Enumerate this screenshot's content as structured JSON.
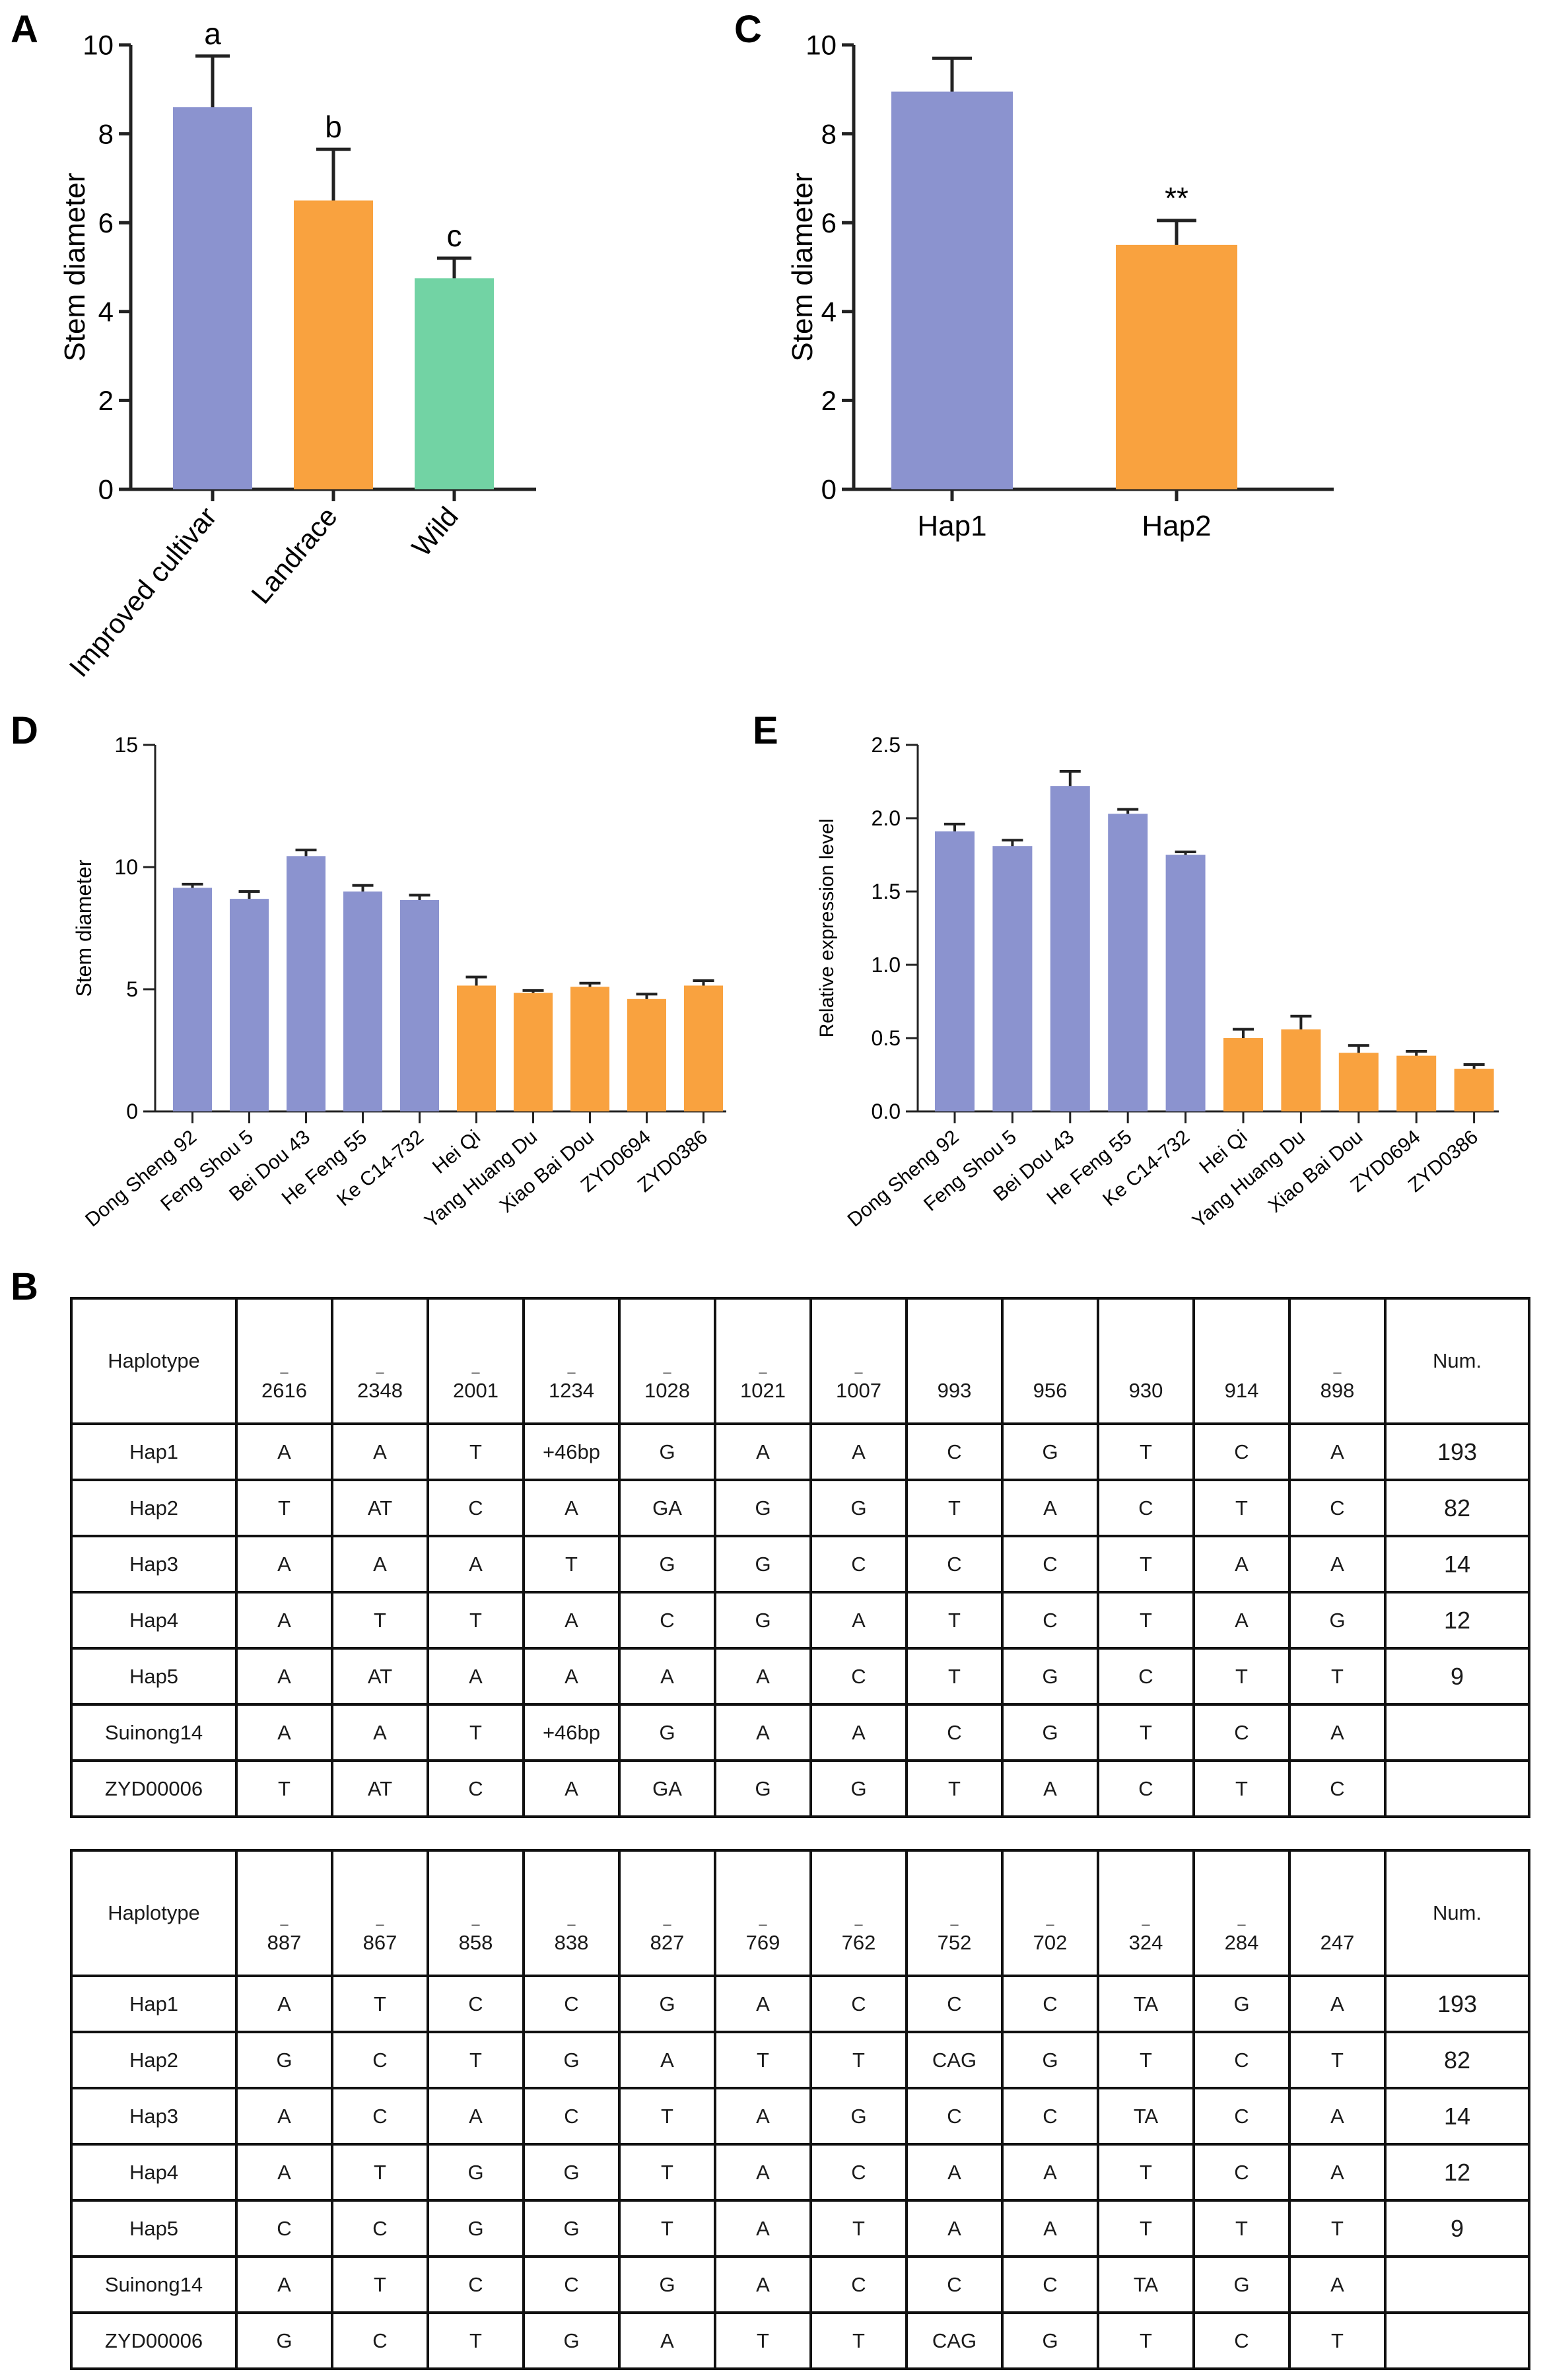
{
  "panel_labels": {
    "A": "A",
    "B": "B",
    "C": "C",
    "D": "D",
    "E": "E"
  },
  "colors": {
    "purple": "#8b93cf",
    "orange": "#f9a23f",
    "green": "#72d3a4"
  },
  "chart_data": [
    {
      "id": "A",
      "type": "bar",
      "title": "",
      "xlabel": "",
      "ylabel": "Stem diameter",
      "ylim": [
        0,
        10
      ],
      "yticks": [
        "0",
        "2",
        "4",
        "6",
        "8",
        "10"
      ],
      "categories": [
        "Improved cultivar",
        "Landrace",
        "Wild"
      ],
      "values": [
        8.6,
        6.5,
        4.75
      ],
      "errors": [
        1.15,
        1.15,
        0.45
      ],
      "colors": [
        "#8b93cf",
        "#f9a23f",
        "#72d3a4"
      ],
      "annotations": [
        "a",
        "b",
        "c"
      ]
    },
    {
      "id": "C",
      "type": "bar",
      "title": "",
      "xlabel": "",
      "ylabel": "Stem diameter",
      "ylim": [
        0,
        10
      ],
      "yticks": [
        "0",
        "2",
        "4",
        "6",
        "8",
        "10"
      ],
      "categories": [
        "Hap1",
        "Hap2"
      ],
      "values": [
        8.95,
        5.5
      ],
      "errors": [
        0.75,
        0.55
      ],
      "colors": [
        "#8b93cf",
        "#f9a23f"
      ],
      "annotations": [
        "",
        "**"
      ]
    },
    {
      "id": "D",
      "type": "bar",
      "title": "",
      "xlabel": "",
      "ylabel": "Stem diameter",
      "ylim": [
        0,
        15
      ],
      "yticks": [
        "0",
        "5",
        "10",
        "15"
      ],
      "categories": [
        "Dong Sheng 92",
        "Feng Shou 5",
        "Bei Dou 43",
        "He Feng 55",
        "Ke C14-732",
        "Hei Qi",
        "Yang Huang Du",
        "Xiao Bai Dou",
        "ZYD0694",
        "ZYD0386"
      ],
      "values": [
        9.15,
        8.7,
        10.45,
        9.0,
        8.65,
        5.15,
        4.85,
        5.1,
        4.6,
        5.15
      ],
      "errors": [
        0.15,
        0.3,
        0.25,
        0.25,
        0.2,
        0.35,
        0.1,
        0.15,
        0.2,
        0.2
      ],
      "colors": [
        "#8b93cf",
        "#8b93cf",
        "#8b93cf",
        "#8b93cf",
        "#8b93cf",
        "#f9a23f",
        "#f9a23f",
        "#f9a23f",
        "#f9a23f",
        "#f9a23f"
      ]
    },
    {
      "id": "E",
      "type": "bar",
      "title": "",
      "xlabel": "",
      "ylabel": "Relative expression level",
      "ylim": [
        0,
        2.5
      ],
      "yticks": [
        "0.0",
        "0.5",
        "1.0",
        "1.5",
        "2.0",
        "2.5"
      ],
      "categories": [
        "Dong Sheng 92",
        "Feng Shou 5",
        "Bei Dou 43",
        "He Feng 55",
        "Ke C14-732",
        "Hei Qi",
        "Yang Huang Du",
        "Xiao Bai Dou",
        "ZYD0694",
        "ZYD0386"
      ],
      "values": [
        1.91,
        1.81,
        2.22,
        2.03,
        1.75,
        0.5,
        0.56,
        0.4,
        0.38,
        0.29
      ],
      "errors": [
        0.05,
        0.04,
        0.1,
        0.03,
        0.02,
        0.06,
        0.09,
        0.05,
        0.03,
        0.03
      ],
      "colors": [
        "#8b93cf",
        "#8b93cf",
        "#8b93cf",
        "#8b93cf",
        "#8b93cf",
        "#f9a23f",
        "#f9a23f",
        "#f9a23f",
        "#f9a23f",
        "#f9a23f"
      ]
    }
  ],
  "tables": [
    {
      "header_label": "Haplotype",
      "count_label": "Num.",
      "positions": [
        {
          "dash": "–",
          "num": "2616"
        },
        {
          "dash": "–",
          "num": "2348"
        },
        {
          "dash": "–",
          "num": "2001"
        },
        {
          "dash": "–",
          "num": "1234"
        },
        {
          "dash": "–",
          "num": "1028"
        },
        {
          "dash": "–",
          "num": "1021"
        },
        {
          "dash": "–",
          "num": "1007"
        },
        {
          "dash": "",
          "num": "993"
        },
        {
          "dash": "",
          "num": "956"
        },
        {
          "dash": "",
          "num": "930"
        },
        {
          "dash": "",
          "num": "914"
        },
        {
          "dash": "–",
          "num": "898"
        }
      ],
      "rows": [
        {
          "name": "Hap1",
          "cells": [
            "A",
            "A",
            "T",
            "+46bp",
            "G",
            "A",
            "A",
            "C",
            "G",
            "T",
            "C",
            "A"
          ],
          "num": "193"
        },
        {
          "name": "Hap2",
          "cells": [
            "T",
            "AT",
            "C",
            "A",
            "GA",
            "G",
            "G",
            "T",
            "A",
            "C",
            "T",
            "C"
          ],
          "num": "82"
        },
        {
          "name": "Hap3",
          "cells": [
            "A",
            "A",
            "A",
            "T",
            "G",
            "G",
            "C",
            "C",
            "C",
            "T",
            "A",
            "A"
          ],
          "num": "14"
        },
        {
          "name": "Hap4",
          "cells": [
            "A",
            "T",
            "T",
            "A",
            "C",
            "G",
            "A",
            "T",
            "C",
            "T",
            "A",
            "G"
          ],
          "num": "12"
        },
        {
          "name": "Hap5",
          "cells": [
            "A",
            "AT",
            "A",
            "A",
            "A",
            "A",
            "C",
            "T",
            "G",
            "C",
            "T",
            "T"
          ],
          "num": "9"
        },
        {
          "name": "Suinong14",
          "cells": [
            "A",
            "A",
            "T",
            "+46bp",
            "G",
            "A",
            "A",
            "C",
            "G",
            "T",
            "C",
            "A"
          ],
          "num": ""
        },
        {
          "name": "ZYD00006",
          "cells": [
            "T",
            "AT",
            "C",
            "A",
            "GA",
            "G",
            "G",
            "T",
            "A",
            "C",
            "T",
            "C"
          ],
          "num": ""
        }
      ]
    },
    {
      "header_label": "Haplotype",
      "count_label": "Num.",
      "positions": [
        {
          "dash": "–",
          "num": "887"
        },
        {
          "dash": "–",
          "num": "867"
        },
        {
          "dash": "–",
          "num": "858"
        },
        {
          "dash": "–",
          "num": "838"
        },
        {
          "dash": "–",
          "num": "827"
        },
        {
          "dash": "–",
          "num": "769"
        },
        {
          "dash": "–",
          "num": "762"
        },
        {
          "dash": "–",
          "num": "752"
        },
        {
          "dash": "–",
          "num": "702"
        },
        {
          "dash": "–",
          "num": "324"
        },
        {
          "dash": "–",
          "num": "284"
        },
        {
          "dash": "",
          "num": "247"
        }
      ],
      "rows": [
        {
          "name": "Hap1",
          "cells": [
            "A",
            "T",
            "C",
            "C",
            "G",
            "A",
            "C",
            "C",
            "C",
            "TA",
            "G",
            "A"
          ],
          "num": "193"
        },
        {
          "name": "Hap2",
          "cells": [
            "G",
            "C",
            "T",
            "G",
            "A",
            "T",
            "T",
            "CAG",
            "G",
            "T",
            "C",
            "T"
          ],
          "num": "82"
        },
        {
          "name": "Hap3",
          "cells": [
            "A",
            "C",
            "A",
            "C",
            "T",
            "A",
            "G",
            "C",
            "C",
            "TA",
            "C",
            "A"
          ],
          "num": "14"
        },
        {
          "name": "Hap4",
          "cells": [
            "A",
            "T",
            "G",
            "G",
            "T",
            "A",
            "C",
            "A",
            "A",
            "T",
            "C",
            "A"
          ],
          "num": "12"
        },
        {
          "name": "Hap5",
          "cells": [
            "C",
            "C",
            "G",
            "G",
            "T",
            "A",
            "T",
            "A",
            "A",
            "T",
            "T",
            "T"
          ],
          "num": "9"
        },
        {
          "name": "Suinong14",
          "cells": [
            "A",
            "T",
            "C",
            "C",
            "G",
            "A",
            "C",
            "C",
            "C",
            "TA",
            "G",
            "A"
          ],
          "num": ""
        },
        {
          "name": "ZYD00006",
          "cells": [
            "G",
            "C",
            "T",
            "G",
            "A",
            "T",
            "T",
            "CAG",
            "G",
            "T",
            "C",
            "T"
          ],
          "num": ""
        }
      ]
    }
  ]
}
